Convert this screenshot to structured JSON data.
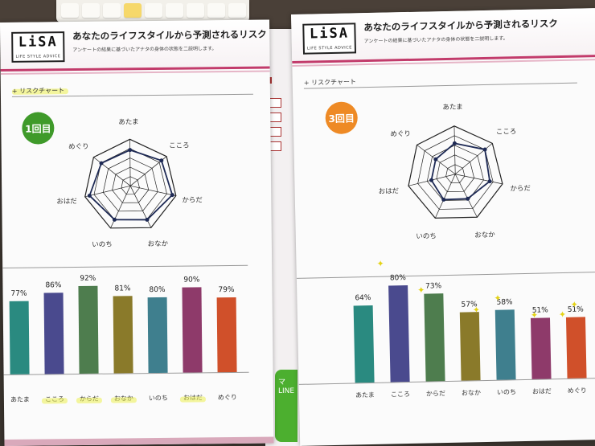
{
  "left_sheet": {
    "logo": {
      "main": "LiSA",
      "tag": "LIFE STYLE ADVICE"
    },
    "title": "あなたのライフスタイルから予測されるリスク",
    "subtitle": "アンケートの結果に基づいたアナタの身体の状態を二説明します。",
    "section": "+ リスクチャート",
    "badge": "1回目",
    "badge_color": "#3f9a2a",
    "radar_labels": [
      "あたま",
      "こころ",
      "からだ",
      "おなか",
      "いのち",
      "おはだ",
      "めぐり"
    ]
  },
  "right_sheet": {
    "logo": {
      "main": "LiSA",
      "tag": "LIFE STYLE ADVICE"
    },
    "title": "あなたのライフスタイルから予測されるリスク",
    "subtitle": "アンケートの結果に基づいたアナタの身体の状態を二説明します。",
    "section": "+ リスクチャート",
    "badge": "3回目",
    "badge_color": "#ee8a25",
    "radar_labels": [
      "あたま",
      "こころ",
      "からだ",
      "おなか",
      "いのち",
      "おはだ",
      "めぐり"
    ]
  },
  "chart_data": [
    {
      "type": "bar",
      "categories": [
        "あたま",
        "こころ",
        "からだ",
        "おなか",
        "いのち",
        "おはだ",
        "めぐり"
      ],
      "values": [
        77,
        86,
        92,
        81,
        80,
        90,
        79
      ],
      "labels": [
        "77%",
        "86%",
        "92%",
        "81%",
        "80%",
        "90%",
        "79%"
      ],
      "colors": [
        "#2a8a80",
        "#4a4a8e",
        "#4e7d4e",
        "#8a7a2a",
        "#3f7f8e",
        "#8e3a6a",
        "#d0502a"
      ]
    },
    {
      "type": "bar",
      "categories": [
        "あたま",
        "こころ",
        "からだ",
        "おなか",
        "いのち",
        "おはだ",
        "めぐり"
      ],
      "values": [
        64,
        80,
        73,
        57,
        58,
        51,
        51
      ],
      "labels": [
        "64%",
        "80%",
        "73%",
        "57%",
        "58%",
        "51%",
        "51%"
      ],
      "colors": [
        "#2a8a80",
        "#4a4a8e",
        "#4e7d4e",
        "#8a7a2a",
        "#3f7f8e",
        "#8e3a6a",
        "#d0502a"
      ]
    }
  ],
  "middle": {
    "partial_text": "マ",
    "partial_line": "LINE"
  }
}
